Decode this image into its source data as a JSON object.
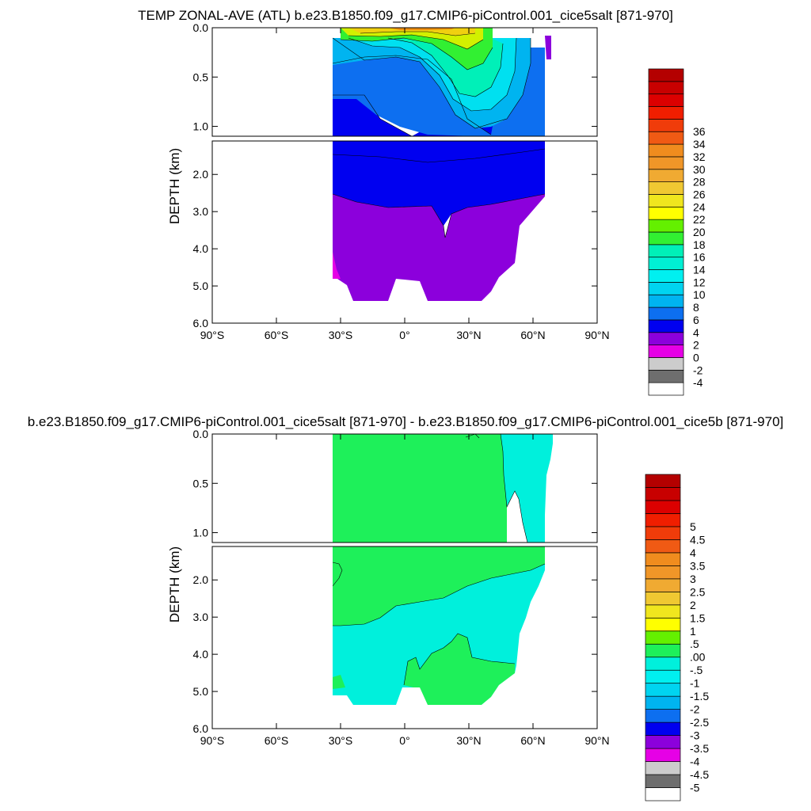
{
  "chart_data": [
    {
      "type": "contour",
      "title": "TEMP ZONAL-AVE (ATL) b.e23.B1850.f09_g17.CMIP6-piControl.001_cice5salt [871-970]",
      "ylabel": "DEPTH (km)",
      "xlabel": "",
      "xlim": [
        -90,
        90
      ],
      "x_ticks": [
        {
          "value": -90,
          "label": "90°S"
        },
        {
          "value": -60,
          "label": "60°S"
        },
        {
          "value": -30,
          "label": "30°S"
        },
        {
          "value": 0,
          "label": "0°"
        },
        {
          "value": 30,
          "label": "30°N"
        },
        {
          "value": 60,
          "label": "60°N"
        },
        {
          "value": 90,
          "label": "90°N"
        }
      ],
      "y_upper": {
        "range_km": [
          0,
          1.1
        ],
        "ticks": [
          {
            "value": 0,
            "label": "0.0"
          },
          {
            "value": 0.5,
            "label": "0.5"
          },
          {
            "value": 1.0,
            "label": "1.0"
          }
        ]
      },
      "y_lower": {
        "range_km": [
          1.1,
          6.0
        ],
        "ticks": [
          {
            "value": 2,
            "label": "2.0"
          },
          {
            "value": 3,
            "label": "3.0"
          },
          {
            "value": 4,
            "label": "4.0"
          },
          {
            "value": 5,
            "label": "5.0"
          },
          {
            "value": 6,
            "label": "6.0"
          }
        ]
      },
      "ocean_extent": {
        "lat_south": -34,
        "lat_north": 66
      },
      "regions_upper": [
        {
          "level": 6,
          "color": "#0000f0",
          "lat_range": [
            -34,
            65
          ],
          "depth_top_km": 0.7,
          "depth_bottom_km": 1.1
        },
        {
          "level": 8,
          "color": "#0d6ff0",
          "lat_range": [
            -34,
            65
          ],
          "depth_top_km": 0.33,
          "depth_bottom_km": 1.0
        },
        {
          "level": 10,
          "color": "#00b4f0",
          "lat_range": [
            -34,
            58
          ],
          "depth_top_km": 0.16,
          "depth_bottom_km": 0.65
        },
        {
          "level": 12,
          "color": "#00e0f0",
          "lat_range": [
            -20,
            50
          ],
          "depth_top_km": 0.1,
          "depth_bottom_km": 0.55
        },
        {
          "level": 16,
          "color": "#00f0b8",
          "lat_range": [
            -12,
            45
          ],
          "depth_top_km": 0.05,
          "depth_bottom_km": 0.45
        },
        {
          "level": 18,
          "color": "#30f030",
          "lat_range": [
            -26,
            38
          ],
          "depth_top_km": 0.0,
          "depth_bottom_km": 0.2
        },
        {
          "level": 20,
          "color": "#d2f000",
          "lat_range": [
            -28,
            30
          ],
          "depth_top_km": 0.0,
          "depth_bottom_km": 0.08
        },
        {
          "level": 24,
          "color": "#f0d010",
          "lat_range": [
            -26,
            28
          ],
          "depth_top_km": 0.0,
          "depth_bottom_km": 0.05
        },
        {
          "level": 28,
          "color": "#f09010",
          "lat_range": [
            -8,
            22
          ],
          "depth_top_km": 0.0,
          "depth_bottom_km": 0.02
        }
      ],
      "regions_lower": [
        {
          "level": 6,
          "color": "#0000f0",
          "lat_range": [
            -34,
            65
          ],
          "depth_top_km": 1.1,
          "depth_bottom_km": 2.5
        },
        {
          "level": 4,
          "color": "#8c00dc",
          "lat_range": [
            -34,
            57
          ],
          "depth_top_km": 2.5,
          "depth_bottom_km": 5.4
        }
      ],
      "colorbar": {
        "colors": [
          "#ffffff",
          "#6e6e6e",
          "#cccccc",
          "#e600e6",
          "#8c00dc",
          "#0000f0",
          "#0d6ff0",
          "#00b4f0",
          "#00d4f0",
          "#00f0f0",
          "#00f0d4",
          "#00f0b8",
          "#32f032",
          "#64f000",
          "#ffff00",
          "#f0e61e",
          "#f0c832",
          "#f0aa32",
          "#f09628",
          "#f08c1e",
          "#f05a14",
          "#f03c0a",
          "#f01e00",
          "#dc0000",
          "#c80000",
          "#b40000"
        ],
        "labels": [
          "-4",
          "-2",
          "0",
          "2",
          "4",
          "6",
          "8",
          "10",
          "12",
          "14",
          "16",
          "18",
          "20",
          "22",
          "24",
          "26",
          "28",
          "30",
          "32",
          "34",
          "36"
        ]
      }
    },
    {
      "type": "contour",
      "title": "b.e23.B1850.f09_g17.CMIP6-piControl.001_cice5salt [871-970] - b.e23.B1850.f09_g17.CMIP6-piControl.001_cice5b [871-970]",
      "ylabel": "DEPTH (km)",
      "xlabel": "",
      "xlim": [
        -90,
        90
      ],
      "x_ticks": [
        {
          "value": -90,
          "label": "90°S"
        },
        {
          "value": -60,
          "label": "60°S"
        },
        {
          "value": -30,
          "label": "30°S"
        },
        {
          "value": 0,
          "label": "0°"
        },
        {
          "value": 30,
          "label": "30°N"
        },
        {
          "value": 60,
          "label": "60°N"
        },
        {
          "value": 90,
          "label": "90°N"
        }
      ],
      "y_upper": {
        "range_km": [
          0,
          1.1
        ],
        "ticks": [
          {
            "value": 0,
            "label": "0.0"
          },
          {
            "value": 0.5,
            "label": "0.5"
          },
          {
            "value": 1.0,
            "label": "1.0"
          }
        ]
      },
      "y_lower": {
        "range_km": [
          1.1,
          6.0
        ],
        "ticks": [
          {
            "value": 2,
            "label": "2.0"
          },
          {
            "value": 3,
            "label": "3.0"
          },
          {
            "value": 4,
            "label": "4.0"
          },
          {
            "value": 5,
            "label": "5.0"
          },
          {
            "value": 6,
            "label": "6.0"
          }
        ]
      },
      "ocean_extent": {
        "lat_south": -34,
        "lat_north": 67
      },
      "regions_upper": [
        {
          "level": 0.0,
          "color": "#1ef05a",
          "lat_range": [
            -34,
            47
          ],
          "depth_top_km": 0.0,
          "depth_bottom_km": 1.1
        },
        {
          "level": -0.5,
          "color": "#00f0dc",
          "lat_range": [
            47,
            67
          ],
          "depth_top_km": 0.0,
          "depth_bottom_km": 1.1
        }
      ],
      "regions_lower": [
        {
          "level": 0.0,
          "color": "#1ef05a",
          "lat_range": [
            -34,
            64
          ],
          "depth_top_km": 1.1,
          "depth_bottom_km": 2.9
        },
        {
          "level": -0.5,
          "color": "#00f0dc",
          "lat_range": [
            -34,
            64
          ],
          "depth_top_km": 2.9,
          "depth_bottom_km": 5.4
        },
        {
          "level": 0.0,
          "color": "#1ef05a",
          "lat_range": [
            0,
            52
          ],
          "depth_top_km": 4.2,
          "depth_bottom_km": 5.4
        }
      ],
      "colorbar": {
        "colors": [
          "#ffffff",
          "#6e6e6e",
          "#cccccc",
          "#e600e6",
          "#8c00dc",
          "#0000f0",
          "#0d6ff0",
          "#00b4f0",
          "#00d4f0",
          "#00f0f0",
          "#00f0dc",
          "#1ef05a",
          "#64f000",
          "#ffff00",
          "#f0e61e",
          "#f0c832",
          "#f0aa32",
          "#f09628",
          "#f08c1e",
          "#f05a14",
          "#f03c0a",
          "#f01e00",
          "#dc0000",
          "#c80000",
          "#b40000"
        ],
        "labels": [
          "-5",
          "-4.5",
          "-4",
          "-3.5",
          "-3",
          "-2.5",
          "-2",
          "-1.5",
          "-1",
          "-.5",
          ".00",
          ".5",
          "1",
          "1.5",
          "2",
          "2.5",
          "3",
          "3.5",
          "4",
          "4.5",
          "5"
        ]
      }
    }
  ]
}
